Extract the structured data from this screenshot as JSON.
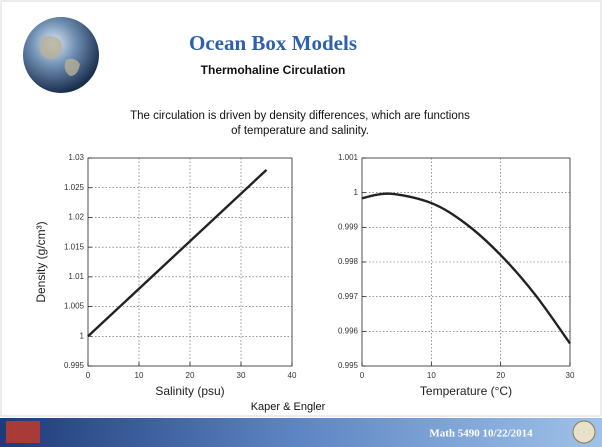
{
  "title": "Ocean Box Models",
  "subtitle": "Thermohaline Circulation",
  "body": [
    "The circulation is driven by density differences, which are functions",
    "of temperature and salinity."
  ],
  "credit": "Kaper & Engler",
  "footer": "Math 5490  10/22/2014",
  "chart_data": [
    {
      "type": "line",
      "x_label": "Salinity (psu)",
      "y_label": "Density (g/cm³)",
      "x": [
        0,
        35
      ],
      "values": [
        1.0,
        1.028
      ],
      "color": "#222222",
      "xlim": [
        0,
        40
      ],
      "xticks": [
        0,
        10,
        20,
        30,
        40
      ],
      "ylim": [
        0.995,
        1.03
      ],
      "yticks": [
        0.995,
        1,
        1.005,
        1.01,
        1.015,
        1.02,
        1.025,
        1.03
      ],
      "grid": true
    },
    {
      "type": "line",
      "x_label": "Temperature (°C)",
      "x": [
        0,
        4,
        10,
        15,
        20,
        25,
        30
      ],
      "values": [
        0.99984,
        0.99997,
        0.9997,
        0.9991,
        0.9982,
        0.99705,
        0.99565
      ],
      "color": "#222222",
      "xlim": [
        0,
        30
      ],
      "xticks": [
        0,
        10,
        20,
        30
      ],
      "ylim": [
        0.995,
        1.001
      ],
      "yticks": [
        0.995,
        0.996,
        0.997,
        0.998,
        0.999,
        1,
        1.001
      ],
      "grid": true
    }
  ]
}
